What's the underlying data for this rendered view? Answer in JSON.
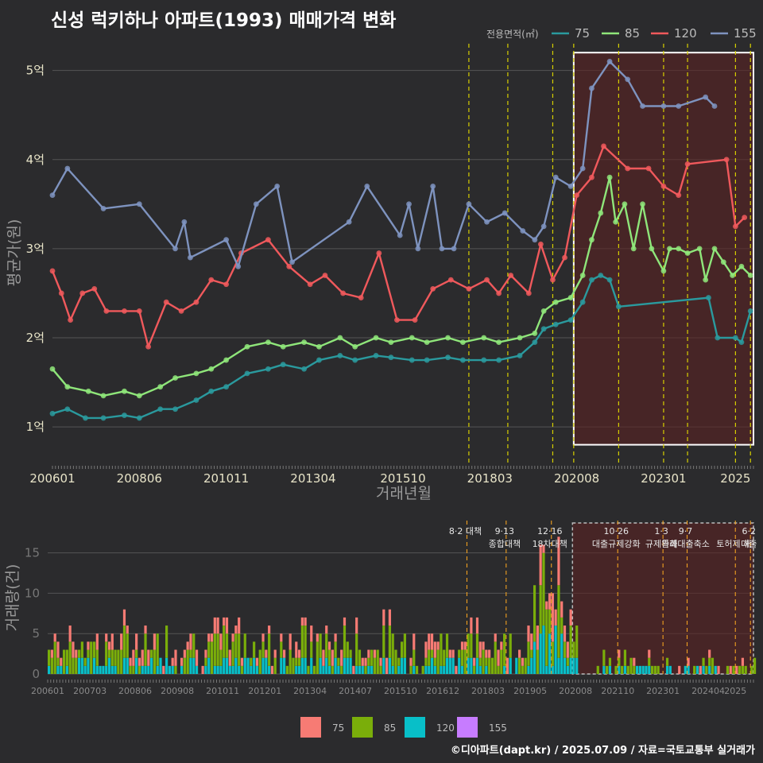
{
  "title": "신성 럭키하나 아파트(1993) 매매가격 변화",
  "credit": "©디아파트(dapt.kr) / 2025.07.09 / 자료=국토교통부 실거래가",
  "colors": {
    "background": "#2b2b2d",
    "s75": "#2a9a9e",
    "s85": "#8fe67a",
    "s120": "#f0595c",
    "s155": "#7e93bf",
    "v75": "#f77b74",
    "v85": "#7aae0a",
    "v120": "#08bfc8",
    "v155": "#c77cff",
    "policy": "#d7d000",
    "highlight": "#5a2222"
  },
  "chart_data": [
    {
      "type": "line",
      "ylabel": "평균가(원)",
      "xlabel": "거래년월",
      "legend_title": "전용면적(㎡)",
      "legend_position": "top-right",
      "x_range": [
        "2006-01",
        "2025-07"
      ],
      "ylim": [
        0.6,
        5.3
      ],
      "y_ticks": [
        {
          "v": 1,
          "label": "1억"
        },
        {
          "v": 2,
          "label": "2억"
        },
        {
          "v": 3,
          "label": "3억"
        },
        {
          "v": 4,
          "label": "4억"
        },
        {
          "v": 5,
          "label": "5억"
        }
      ],
      "x_ticks": [
        "200601",
        "200806",
        "201011",
        "201304",
        "201510",
        "201803",
        "202008",
        "202301",
        "2025"
      ],
      "policy_dates": [
        "2017-08",
        "2018-09",
        "2019-12",
        "2020-07",
        "2021-10",
        "2023-01",
        "2023-09",
        "2025-01",
        "2025-06"
      ],
      "highlight_range": [
        "2020-07",
        "2025-07"
      ],
      "highlight_y": [
        0.8,
        5.2
      ],
      "series": [
        {
          "name": "75",
          "points": [
            [
              "2006-01",
              1.15
            ],
            [
              "2006-06",
              1.2
            ],
            [
              "2006-12",
              1.1
            ],
            [
              "2007-06",
              1.1
            ],
            [
              "2008-01",
              1.13
            ],
            [
              "2008-06",
              1.1
            ],
            [
              "2009-01",
              1.2
            ],
            [
              "2009-06",
              1.2
            ],
            [
              "2010-01",
              1.3
            ],
            [
              "2010-06",
              1.4
            ],
            [
              "2010-11",
              1.45
            ],
            [
              "2011-06",
              1.6
            ],
            [
              "2012-01",
              1.65
            ],
            [
              "2012-06",
              1.7
            ],
            [
              "2013-01",
              1.65
            ],
            [
              "2013-06",
              1.75
            ],
            [
              "2014-01",
              1.8
            ],
            [
              "2014-06",
              1.75
            ],
            [
              "2015-01",
              1.8
            ],
            [
              "2015-06",
              1.78
            ],
            [
              "2016-01",
              1.75
            ],
            [
              "2016-06",
              1.75
            ],
            [
              "2017-01",
              1.78
            ],
            [
              "2017-06",
              1.75
            ],
            [
              "2018-01",
              1.75
            ],
            [
              "2018-06",
              1.75
            ],
            [
              "2019-01",
              1.8
            ],
            [
              "2019-06",
              1.95
            ],
            [
              "2019-09",
              2.1
            ],
            [
              "2020-01",
              2.15
            ],
            [
              "2020-06",
              2.2
            ],
            [
              "2020-10",
              2.4
            ],
            [
              "2021-01",
              2.65
            ],
            [
              "2021-04",
              2.7
            ],
            [
              "2021-07",
              2.65
            ],
            [
              "2021-10",
              2.35
            ],
            [
              "2024-04",
              2.45
            ],
            [
              "2024-07",
              2.0
            ],
            [
              "2025-01",
              2.0
            ],
            [
              "2025-03",
              1.95
            ],
            [
              "2025-06",
              2.3
            ]
          ]
        },
        {
          "name": "85",
          "points": [
            [
              "2006-01",
              1.65
            ],
            [
              "2006-06",
              1.45
            ],
            [
              "2007-01",
              1.4
            ],
            [
              "2007-06",
              1.35
            ],
            [
              "2008-01",
              1.4
            ],
            [
              "2008-06",
              1.35
            ],
            [
              "2009-01",
              1.45
            ],
            [
              "2009-06",
              1.55
            ],
            [
              "2010-01",
              1.6
            ],
            [
              "2010-06",
              1.65
            ],
            [
              "2010-11",
              1.75
            ],
            [
              "2011-06",
              1.9
            ],
            [
              "2012-01",
              1.95
            ],
            [
              "2012-06",
              1.9
            ],
            [
              "2013-01",
              1.95
            ],
            [
              "2013-06",
              1.9
            ],
            [
              "2014-01",
              2.0
            ],
            [
              "2014-06",
              1.9
            ],
            [
              "2015-01",
              2.0
            ],
            [
              "2015-06",
              1.95
            ],
            [
              "2016-01",
              2.0
            ],
            [
              "2016-06",
              1.95
            ],
            [
              "2017-01",
              2.0
            ],
            [
              "2017-06",
              1.95
            ],
            [
              "2018-01",
              2.0
            ],
            [
              "2018-06",
              1.95
            ],
            [
              "2019-01",
              2.0
            ],
            [
              "2019-06",
              2.05
            ],
            [
              "2019-09",
              2.3
            ],
            [
              "2020-01",
              2.4
            ],
            [
              "2020-06",
              2.45
            ],
            [
              "2020-10",
              2.7
            ],
            [
              "2021-01",
              3.1
            ],
            [
              "2021-04",
              3.4
            ],
            [
              "2021-07",
              3.8
            ],
            [
              "2021-09",
              3.3
            ],
            [
              "2021-12",
              3.5
            ],
            [
              "2022-03",
              3.0
            ],
            [
              "2022-06",
              3.5
            ],
            [
              "2022-09",
              3.0
            ],
            [
              "2023-01",
              2.75
            ],
            [
              "2023-03",
              3.0
            ],
            [
              "2023-06",
              3.0
            ],
            [
              "2023-09",
              2.95
            ],
            [
              "2024-01",
              3.0
            ],
            [
              "2024-03",
              2.65
            ],
            [
              "2024-06",
              3.0
            ],
            [
              "2024-09",
              2.85
            ],
            [
              "2024-12",
              2.7
            ],
            [
              "2025-03",
              2.8
            ],
            [
              "2025-06",
              2.7
            ]
          ]
        },
        {
          "name": "120",
          "points": [
            [
              "2006-01",
              2.75
            ],
            [
              "2006-04",
              2.5
            ],
            [
              "2006-07",
              2.2
            ],
            [
              "2006-11",
              2.5
            ],
            [
              "2007-03",
              2.55
            ],
            [
              "2007-07",
              2.3
            ],
            [
              "2008-01",
              2.3
            ],
            [
              "2008-06",
              2.3
            ],
            [
              "2008-09",
              1.9
            ],
            [
              "2009-03",
              2.4
            ],
            [
              "2009-08",
              2.3
            ],
            [
              "2010-01",
              2.4
            ],
            [
              "2010-06",
              2.65
            ],
            [
              "2010-11",
              2.6
            ],
            [
              "2011-04",
              2.95
            ],
            [
              "2012-01",
              3.1
            ],
            [
              "2012-08",
              2.8
            ],
            [
              "2013-03",
              2.6
            ],
            [
              "2013-08",
              2.7
            ],
            [
              "2014-02",
              2.5
            ],
            [
              "2014-08",
              2.45
            ],
            [
              "2015-02",
              2.95
            ],
            [
              "2015-08",
              2.2
            ],
            [
              "2016-02",
              2.2
            ],
            [
              "2016-08",
              2.55
            ],
            [
              "2017-02",
              2.65
            ],
            [
              "2017-08",
              2.55
            ],
            [
              "2018-02",
              2.65
            ],
            [
              "2018-06",
              2.5
            ],
            [
              "2018-10",
              2.7
            ],
            [
              "2019-04",
              2.5
            ],
            [
              "2019-08",
              3.05
            ],
            [
              "2019-12",
              2.65
            ],
            [
              "2020-04",
              2.9
            ],
            [
              "2020-08",
              3.6
            ],
            [
              "2021-01",
              3.8
            ],
            [
              "2021-05",
              4.15
            ],
            [
              "2022-01",
              3.9
            ],
            [
              "2022-08",
              3.9
            ],
            [
              "2023-01",
              3.7
            ],
            [
              "2023-06",
              3.6
            ],
            [
              "2023-09",
              3.95
            ],
            [
              "2024-10",
              4.0
            ],
            [
              "2025-01",
              3.25
            ],
            [
              "2025-04",
              3.35
            ]
          ]
        },
        {
          "name": "155",
          "points": [
            [
              "2006-01",
              3.6
            ],
            [
              "2006-06",
              3.9
            ],
            [
              "2007-06",
              3.45
            ],
            [
              "2008-06",
              3.5
            ],
            [
              "2009-06",
              3.0
            ],
            [
              "2009-09",
              3.3
            ],
            [
              "2009-11",
              2.9
            ],
            [
              "2010-11",
              3.1
            ],
            [
              "2011-03",
              2.8
            ],
            [
              "2011-09",
              3.5
            ],
            [
              "2012-04",
              3.7
            ],
            [
              "2012-09",
              2.85
            ],
            [
              "2014-04",
              3.3
            ],
            [
              "2014-10",
              3.7
            ],
            [
              "2015-09",
              3.15
            ],
            [
              "2015-12",
              3.5
            ],
            [
              "2016-03",
              3.0
            ],
            [
              "2016-08",
              3.7
            ],
            [
              "2016-11",
              3.0
            ],
            [
              "2017-03",
              3.0
            ],
            [
              "2017-08",
              3.5
            ],
            [
              "2018-02",
              3.3
            ],
            [
              "2018-08",
              3.4
            ],
            [
              "2019-02",
              3.2
            ],
            [
              "2019-06",
              3.1
            ],
            [
              "2019-09",
              3.25
            ],
            [
              "2020-01",
              3.8
            ],
            [
              "2020-06",
              3.7
            ],
            [
              "2020-10",
              3.9
            ],
            [
              "2021-01",
              4.8
            ],
            [
              "2021-07",
              5.1
            ],
            [
              "2022-01",
              4.9
            ],
            [
              "2022-06",
              4.6
            ],
            [
              "2023-01",
              4.6
            ],
            [
              "2023-06",
              4.6
            ],
            [
              "2024-03",
              4.7
            ],
            [
              "2024-06",
              4.6
            ]
          ]
        }
      ]
    },
    {
      "type": "bar",
      "stacked": true,
      "ylabel": "거래량(건)",
      "ylim": [
        0,
        19
      ],
      "y_ticks": [
        0,
        5,
        10,
        15
      ],
      "x_ticks": [
        "200601",
        "200703",
        "200806",
        "200908",
        "201011",
        "201201",
        "201304",
        "201407",
        "201510",
        "201612",
        "201803",
        "201905",
        "202008",
        "202110",
        "202301",
        "202404",
        "2025"
      ],
      "legend_position": "bottom",
      "series_names": [
        "75",
        "85",
        "120",
        "155"
      ],
      "approx_monthly_total_range": [
        0,
        19
      ],
      "highlight_range": [
        "2020-07",
        "2025-07"
      ],
      "annotations": [
        {
          "date": "2017-08",
          "lines": [
            "8·2 대책"
          ]
        },
        {
          "date": "2018-09",
          "lines": [
            "9·13",
            "종합대책"
          ]
        },
        {
          "date": "2019-12",
          "lines": [
            "12·16",
            "18차대책"
          ]
        },
        {
          "date": "2021-10",
          "lines": [
            "10·26",
            "대출규제강화"
          ]
        },
        {
          "date": "2023-01",
          "lines": [
            "1·3",
            "규제완화"
          ]
        },
        {
          "date": "2023-09",
          "lines": [
            "9·7",
            "특례대출축소"
          ]
        },
        {
          "date": "2025-01",
          "lines": [
            "",
            "토허제 해"
          ]
        },
        {
          "date": "2025-06",
          "lines": [
            "6·2",
            "대출"
          ]
        }
      ]
    }
  ]
}
